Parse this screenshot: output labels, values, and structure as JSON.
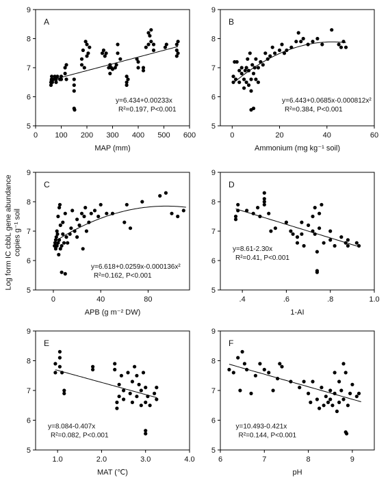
{
  "figure": {
    "shared_ylabel_line1": "Log form IC cbbL gene abundance",
    "shared_ylabel_line2": "copies g⁻¹ soil"
  },
  "chart_data": [
    {
      "type": "scatter",
      "panel": "A",
      "xlabel": "MAP (mm)",
      "xlim": [
        0,
        600
      ],
      "ylim": [
        5,
        9
      ],
      "xticks": [
        0,
        100,
        200,
        300,
        400,
        500,
        600
      ],
      "yticks": [
        5,
        6,
        7,
        8,
        9
      ],
      "equation": "y=6.434+0.00233x",
      "r2": "R²=0.197, P<0.001",
      "fit": {
        "kind": "linear",
        "coef": [
          6.434,
          0.00233
        ],
        "range": [
          55,
          555
        ]
      },
      "points": [
        [
          60,
          6.4
        ],
        [
          60,
          6.5
        ],
        [
          62,
          6.6
        ],
        [
          63,
          6.7
        ],
        [
          65,
          6.5
        ],
        [
          70,
          6.6
        ],
        [
          75,
          6.7
        ],
        [
          80,
          6.6
        ],
        [
          80,
          6.5
        ],
        [
          85,
          6.7
        ],
        [
          95,
          6.6
        ],
        [
          100,
          6.7
        ],
        [
          100,
          6.6
        ],
        [
          115,
          6.8
        ],
        [
          115,
          7.0
        ],
        [
          120,
          6.6
        ],
        [
          120,
          7.1
        ],
        [
          150,
          6.2
        ],
        [
          150,
          6.4
        ],
        [
          150,
          6.6
        ],
        [
          150,
          5.6
        ],
        [
          152,
          5.55
        ],
        [
          180,
          7.1
        ],
        [
          180,
          7.3
        ],
        [
          185,
          7.6
        ],
        [
          190,
          7.0
        ],
        [
          195,
          7.9
        ],
        [
          200,
          7.8
        ],
        [
          200,
          7.4
        ],
        [
          205,
          7.5
        ],
        [
          210,
          7.7
        ],
        [
          260,
          7.5
        ],
        [
          265,
          7.6
        ],
        [
          270,
          7.4
        ],
        [
          275,
          7.5
        ],
        [
          285,
          7.0
        ],
        [
          290,
          6.8
        ],
        [
          290,
          7.1
        ],
        [
          295,
          7.0
        ],
        [
          300,
          6.95
        ],
        [
          310,
          7.0
        ],
        [
          315,
          7.1
        ],
        [
          320,
          7.5
        ],
        [
          320,
          7.8
        ],
        [
          330,
          7.3
        ],
        [
          355,
          6.4
        ],
        [
          355,
          6.5
        ],
        [
          355,
          6.7
        ],
        [
          360,
          6.6
        ],
        [
          395,
          7.3
        ],
        [
          400,
          7.0
        ],
        [
          400,
          7.2
        ],
        [
          420,
          6.9
        ],
        [
          420,
          7.0
        ],
        [
          430,
          7.7
        ],
        [
          440,
          7.8
        ],
        [
          440,
          8.2
        ],
        [
          445,
          8.1
        ],
        [
          450,
          8.3
        ],
        [
          450,
          7.9
        ],
        [
          460,
          7.6
        ],
        [
          460,
          7.8
        ],
        [
          505,
          7.7
        ],
        [
          510,
          7.8
        ],
        [
          550,
          7.4
        ],
        [
          550,
          7.6
        ],
        [
          550,
          7.8
        ],
        [
          555,
          7.9
        ],
        [
          555,
          7.5
        ]
      ]
    },
    {
      "type": "scatter",
      "panel": "B",
      "xlabel": "Ammonium (mg kg⁻¹ soil)",
      "xlim": [
        -5,
        60
      ],
      "ylim": [
        5,
        9
      ],
      "xticks": [
        0,
        20,
        40,
        60
      ],
      "yticks": [
        5,
        6,
        7,
        8,
        9
      ],
      "equation": "y=6.443+0.0685x-0.000812x²",
      "r2": "R²=0.384, P<0.001",
      "fit": {
        "kind": "quadratic",
        "coef": [
          6.443,
          0.0685,
          -0.000812
        ],
        "range": [
          0.5,
          48
        ]
      },
      "points": [
        [
          0.5,
          6.5
        ],
        [
          0.5,
          6.7
        ],
        [
          1,
          7.2
        ],
        [
          1.5,
          6.6
        ],
        [
          2,
          7.2
        ],
        [
          3,
          6.5
        ],
        [
          3,
          6.9
        ],
        [
          4,
          6.8
        ],
        [
          4,
          7.0
        ],
        [
          5,
          6.3
        ],
        [
          5,
          6.6
        ],
        [
          5.5,
          6.9
        ],
        [
          6,
          6.5
        ],
        [
          6,
          7.0
        ],
        [
          6.5,
          7.3
        ],
        [
          7,
          6.4
        ],
        [
          7,
          6.9
        ],
        [
          7.5,
          7.5
        ],
        [
          8,
          6.2
        ],
        [
          8,
          5.55
        ],
        [
          8,
          6.6
        ],
        [
          8.5,
          7.1
        ],
        [
          9,
          5.6
        ],
        [
          9,
          6.8
        ],
        [
          9.5,
          7.0
        ],
        [
          10,
          6.6
        ],
        [
          10,
          7.3
        ],
        [
          11,
          7.0
        ],
        [
          11,
          6.5
        ],
        [
          12,
          7.2
        ],
        [
          13,
          7.1
        ],
        [
          14,
          7.5
        ],
        [
          15,
          7.3
        ],
        [
          16,
          7.4
        ],
        [
          17,
          7.7
        ],
        [
          18,
          7.5
        ],
        [
          20,
          7.6
        ],
        [
          21,
          7.8
        ],
        [
          22,
          7.5
        ],
        [
          23,
          7.6
        ],
        [
          25,
          7.7
        ],
        [
          27,
          7.9
        ],
        [
          28,
          8.2
        ],
        [
          29,
          7.9
        ],
        [
          30,
          8.0
        ],
        [
          32,
          7.8
        ],
        [
          34,
          7.9
        ],
        [
          36,
          8.0
        ],
        [
          38,
          7.8
        ],
        [
          42,
          8.3
        ],
        [
          45,
          7.8
        ],
        [
          46,
          7.7
        ],
        [
          47,
          7.9
        ],
        [
          48,
          7.7
        ]
      ]
    },
    {
      "type": "scatter",
      "panel": "C",
      "xlabel": "APB (g m⁻² DW)",
      "xlim": [
        -15,
        115
      ],
      "ylim": [
        5,
        9
      ],
      "xticks": [
        0,
        40,
        80
      ],
      "yticks": [
        5,
        6,
        7,
        8,
        9
      ],
      "equation": "y=6.618+0.0259x-0.000136x²",
      "r2": "R²=0.162, P<0.001",
      "fit": {
        "kind": "quadratic",
        "coef": [
          6.618,
          0.0259,
          -0.000136
        ],
        "range": [
          0,
          112
        ]
      },
      "points": [
        [
          1,
          6.5
        ],
        [
          1.5,
          6.6
        ],
        [
          2,
          6.4
        ],
        [
          2,
          6.7
        ],
        [
          2.5,
          6.8
        ],
        [
          3,
          6.5
        ],
        [
          3,
          7.0
        ],
        [
          3.5,
          6.9
        ],
        [
          4,
          6.6
        ],
        [
          4,
          7.5
        ],
        [
          4.5,
          6.2
        ],
        [
          5,
          6.7
        ],
        [
          5,
          7.8
        ],
        [
          5.5,
          7.9
        ],
        [
          6,
          6.4
        ],
        [
          6,
          7.2
        ],
        [
          7,
          6.5
        ],
        [
          7,
          5.6
        ],
        [
          8,
          6.9
        ],
        [
          8,
          7.3
        ],
        [
          9,
          6.6
        ],
        [
          10,
          5.55
        ],
        [
          10,
          7.6
        ],
        [
          11,
          6.8
        ],
        [
          12,
          6.6
        ],
        [
          14,
          6.9
        ],
        [
          15,
          7.1
        ],
        [
          16,
          7.7
        ],
        [
          18,
          7.0
        ],
        [
          20,
          6.8
        ],
        [
          20,
          7.4
        ],
        [
          22,
          7.2
        ],
        [
          24,
          7.6
        ],
        [
          25,
          6.4
        ],
        [
          26,
          7.5
        ],
        [
          27,
          7.8
        ],
        [
          28,
          7.0
        ],
        [
          30,
          7.3
        ],
        [
          32,
          7.6
        ],
        [
          35,
          7.7
        ],
        [
          38,
          7.5
        ],
        [
          40,
          7.9
        ],
        [
          45,
          7.6
        ],
        [
          50,
          7.6
        ],
        [
          60,
          7.3
        ],
        [
          62,
          7.9
        ],
        [
          65,
          7.1
        ],
        [
          75,
          8.0
        ],
        [
          90,
          8.2
        ],
        [
          95,
          8.3
        ],
        [
          100,
          7.6
        ],
        [
          105,
          7.5
        ],
        [
          110,
          7.7
        ]
      ]
    },
    {
      "type": "scatter",
      "panel": "D",
      "xlabel": "1-AI",
      "xlim": [
        0.3,
        1.0
      ],
      "ylim": [
        5,
        9
      ],
      "xticks": [
        0.4,
        0.6,
        0.8,
        1.0
      ],
      "xticklabels": [
        ".4",
        ".6",
        ".8",
        "1.0"
      ],
      "yticks": [
        5,
        6,
        7,
        8,
        9
      ],
      "equation": "y=8.61-2.30x",
      "r2": "R²=0.41, P<0.001",
      "fit": {
        "kind": "linear",
        "coef": [
          8.61,
          -2.3
        ],
        "range": [
          0.37,
          0.93
        ]
      },
      "points": [
        [
          0.37,
          7.4
        ],
        [
          0.37,
          7.5
        ],
        [
          0.38,
          7.7
        ],
        [
          0.38,
          7.9
        ],
        [
          0.42,
          7.7
        ],
        [
          0.45,
          7.6
        ],
        [
          0.47,
          7.8
        ],
        [
          0.48,
          7.5
        ],
        [
          0.5,
          7.9
        ],
        [
          0.5,
          8.0
        ],
        [
          0.5,
          8.1
        ],
        [
          0.5,
          8.3
        ],
        [
          0.52,
          7.6
        ],
        [
          0.53,
          7.0
        ],
        [
          0.55,
          7.1
        ],
        [
          0.6,
          7.3
        ],
        [
          0.62,
          7.0
        ],
        [
          0.63,
          6.9
        ],
        [
          0.65,
          6.6
        ],
        [
          0.65,
          6.8
        ],
        [
          0.67,
          6.9
        ],
        [
          0.67,
          7.3
        ],
        [
          0.68,
          6.5
        ],
        [
          0.7,
          7.2
        ],
        [
          0.72,
          7.0
        ],
        [
          0.72,
          7.5
        ],
        [
          0.73,
          7.8
        ],
        [
          0.73,
          6.9
        ],
        [
          0.74,
          5.6
        ],
        [
          0.74,
          5.65
        ],
        [
          0.74,
          6.3
        ],
        [
          0.75,
          7.1
        ],
        [
          0.75,
          7.6
        ],
        [
          0.76,
          7.9
        ],
        [
          0.77,
          6.6
        ],
        [
          0.8,
          7.0
        ],
        [
          0.8,
          6.7
        ],
        [
          0.82,
          6.5
        ],
        [
          0.85,
          6.8
        ],
        [
          0.87,
          6.6
        ],
        [
          0.88,
          6.7
        ],
        [
          0.88,
          6.5
        ],
        [
          0.92,
          6.6
        ],
        [
          0.93,
          6.5
        ]
      ]
    },
    {
      "type": "scatter",
      "panel": "E",
      "xlabel": "MAT (℃)",
      "xlim": [
        0.5,
        4.0
      ],
      "ylim": [
        5,
        9
      ],
      "xticks": [
        1.0,
        2.0,
        3.0,
        4.0
      ],
      "yticks": [
        5,
        6,
        7,
        8,
        9
      ],
      "equation": "y=8.084-0.407x",
      "r2": "R²=0.082, P<0.001",
      "fit": {
        "kind": "linear",
        "coef": [
          8.084,
          -0.407
        ],
        "range": [
          0.95,
          3.25
        ]
      },
      "points": [
        [
          0.95,
          7.6
        ],
        [
          0.95,
          7.9
        ],
        [
          1.05,
          7.8
        ],
        [
          1.05,
          8.1
        ],
        [
          1.05,
          8.3
        ],
        [
          1.1,
          7.6
        ],
        [
          1.15,
          7.0
        ],
        [
          1.15,
          6.9
        ],
        [
          1.8,
          7.7
        ],
        [
          1.8,
          7.8
        ],
        [
          2.3,
          7.9
        ],
        [
          2.3,
          7.7
        ],
        [
          2.35,
          6.4
        ],
        [
          2.35,
          6.6
        ],
        [
          2.4,
          6.8
        ],
        [
          2.4,
          7.2
        ],
        [
          2.45,
          7.5
        ],
        [
          2.5,
          7.0
        ],
        [
          2.5,
          6.7
        ],
        [
          2.6,
          7.6
        ],
        [
          2.65,
          6.9
        ],
        [
          2.7,
          7.3
        ],
        [
          2.7,
          6.6
        ],
        [
          2.75,
          7.8
        ],
        [
          2.8,
          7.5
        ],
        [
          2.8,
          6.8
        ],
        [
          2.85,
          7.2
        ],
        [
          2.9,
          6.5
        ],
        [
          2.9,
          7.0
        ],
        [
          2.95,
          7.6
        ],
        [
          3.0,
          5.55
        ],
        [
          3.0,
          5.65
        ],
        [
          3.0,
          6.6
        ],
        [
          3.0,
          7.1
        ],
        [
          3.05,
          6.8
        ],
        [
          3.1,
          6.5
        ],
        [
          3.2,
          6.9
        ],
        [
          3.25,
          6.7
        ],
        [
          3.25,
          7.1
        ]
      ]
    },
    {
      "type": "scatter",
      "panel": "F",
      "xlabel": "pH",
      "xlim": [
        6,
        9.5
      ],
      "ylim": [
        5,
        9
      ],
      "xticks": [
        6,
        7,
        8,
        9
      ],
      "yticks": [
        5,
        6,
        7,
        8,
        9
      ],
      "equation": "y=10.493-0.421x",
      "r2": "R²=0.144, P<0.001",
      "fit": {
        "kind": "linear",
        "coef": [
          10.493,
          -0.421
        ],
        "range": [
          6.2,
          9.2
        ]
      },
      "points": [
        [
          6.2,
          7.7
        ],
        [
          6.3,
          7.6
        ],
        [
          6.4,
          8.1
        ],
        [
          6.45,
          7.0
        ],
        [
          6.5,
          8.3
        ],
        [
          6.55,
          7.9
        ],
        [
          6.6,
          7.7
        ],
        [
          6.7,
          6.9
        ],
        [
          6.8,
          7.5
        ],
        [
          6.9,
          7.9
        ],
        [
          7.0,
          7.7
        ],
        [
          7.1,
          7.6
        ],
        [
          7.2,
          7.0
        ],
        [
          7.3,
          7.4
        ],
        [
          7.35,
          7.9
        ],
        [
          7.4,
          7.8
        ],
        [
          7.6,
          7.3
        ],
        [
          7.8,
          7.1
        ],
        [
          7.9,
          7.3
        ],
        [
          8.0,
          6.9
        ],
        [
          8.05,
          6.6
        ],
        [
          8.1,
          7.3
        ],
        [
          8.2,
          6.7
        ],
        [
          8.25,
          6.4
        ],
        [
          8.3,
          7.1
        ],
        [
          8.35,
          6.5
        ],
        [
          8.4,
          6.8
        ],
        [
          8.45,
          6.6
        ],
        [
          8.5,
          7.0
        ],
        [
          8.5,
          6.7
        ],
        [
          8.55,
          6.5
        ],
        [
          8.6,
          7.6
        ],
        [
          8.6,
          6.9
        ],
        [
          8.65,
          6.3
        ],
        [
          8.7,
          7.3
        ],
        [
          8.7,
          6.6
        ],
        [
          8.75,
          7.0
        ],
        [
          8.8,
          6.7
        ],
        [
          8.8,
          7.9
        ],
        [
          8.85,
          7.6
        ],
        [
          8.85,
          5.6
        ],
        [
          8.87,
          5.55
        ],
        [
          8.9,
          6.5
        ],
        [
          8.95,
          6.9
        ],
        [
          9.0,
          7.2
        ],
        [
          9.1,
          6.8
        ],
        [
          9.15,
          6.9
        ]
      ]
    }
  ]
}
